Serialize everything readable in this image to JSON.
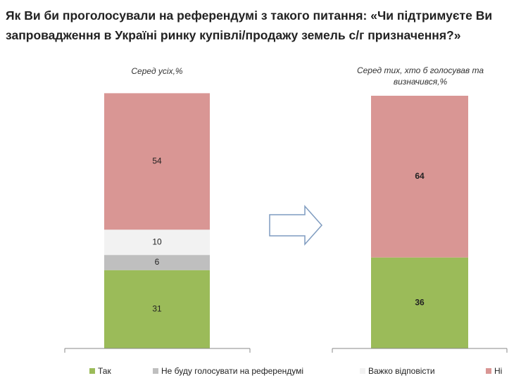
{
  "title": "Як Ви би проголосували на референдумі з такого питання: «Чи підтримуєте Ви запровадження в Україні ринку купівлі/продажу земель с/г призначення?»",
  "chart_data": [
    {
      "type": "stacked-bar",
      "subtitle": "Серед усіх,%",
      "series": [
        {
          "name": "Так",
          "color": "#9bbb59",
          "values": [
            31
          ]
        },
        {
          "name": "Не буду голосувати на референдумі",
          "color": "#bfbfbf",
          "values": [
            6
          ]
        },
        {
          "name": "Важко відповісти",
          "color": "#f2f2f2",
          "values": [
            10
          ]
        },
        {
          "name": "Ні",
          "color": "#d99694",
          "values": [
            54
          ]
        }
      ]
    },
    {
      "type": "stacked-bar",
      "subtitle": "Серед тих, хто б голосував та визначився,%",
      "series": [
        {
          "name": "Так",
          "color": "#9bbb59",
          "values": [
            36
          ]
        },
        {
          "name": "Ні",
          "color": "#d99694",
          "values": [
            64
          ]
        }
      ]
    }
  ]
}
